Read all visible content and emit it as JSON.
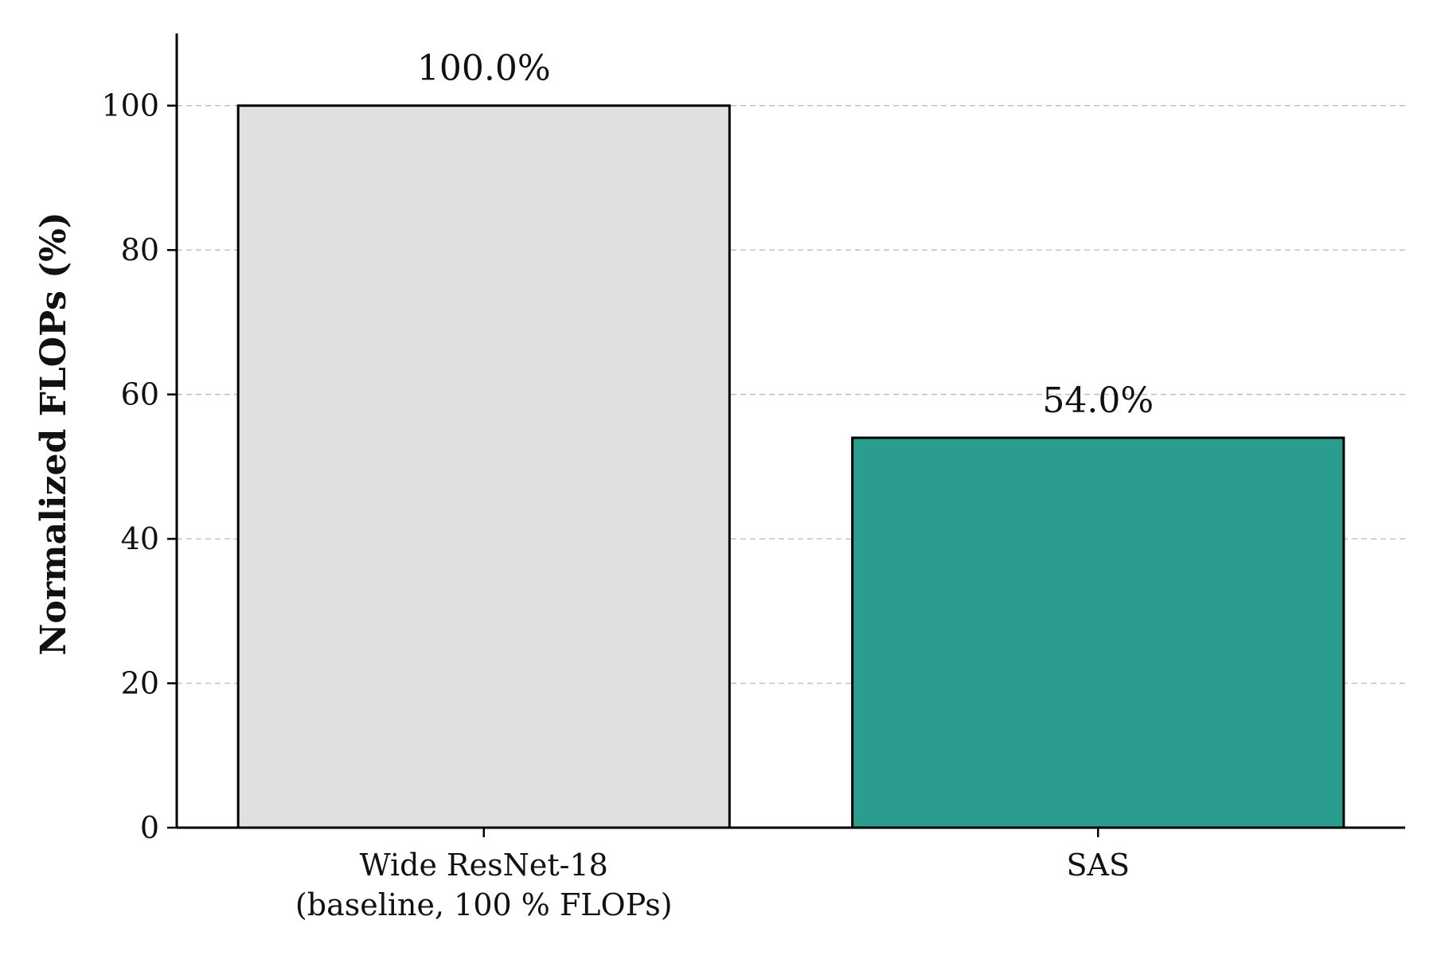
{
  "chart_data": {
    "type": "bar",
    "categories": [
      [
        "Wide ResNet-18",
        "(baseline, 100 % FLOPs)"
      ],
      [
        "SAS"
      ]
    ],
    "values": [
      100.0,
      54.0
    ],
    "value_labels": [
      "100.0%",
      "54.0%"
    ],
    "bar_colors": [
      "#e0e0e0",
      "#2a9d8f"
    ],
    "title": "",
    "xlabel": "",
    "ylabel": "Normalized FLOPs (%)",
    "ylim": [
      0,
      110
    ],
    "yticks": [
      0,
      20,
      40,
      60,
      80,
      100
    ],
    "grid": "y-dashed",
    "legend": "none"
  }
}
